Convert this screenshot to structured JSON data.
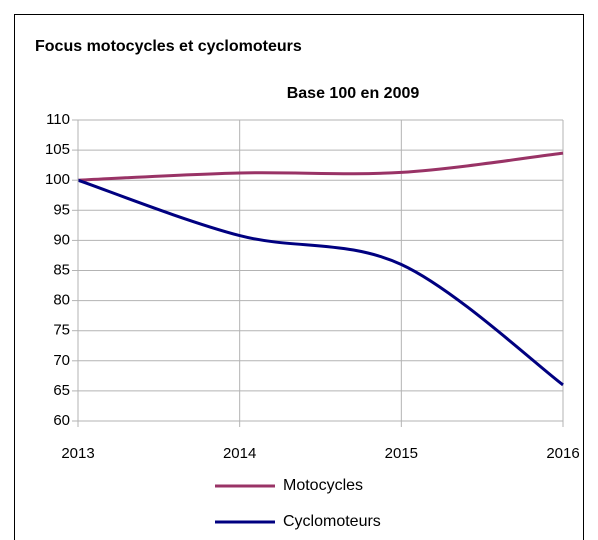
{
  "chart_data": {
    "type": "line",
    "title": "Focus motocycles et cyclomoteurs",
    "subtitle": "Base 100 en 2009",
    "x": [
      2013,
      2014,
      2015,
      2016
    ],
    "xlim": [
      2013,
      2016
    ],
    "xticks": [
      2013,
      2014,
      2015,
      2016
    ],
    "ylim": [
      60,
      110
    ],
    "yticks": [
      60,
      65,
      70,
      75,
      80,
      85,
      90,
      95,
      100,
      105,
      110
    ],
    "grid": true,
    "legend": "bottom",
    "series": [
      {
        "name": "Motocycles",
        "color": "#993366",
        "values": [
          100,
          101.2,
          101.3,
          104.5
        ]
      },
      {
        "name": "Cyclomoteurs",
        "color": "#000080",
        "values": [
          100,
          90.8,
          86,
          66
        ]
      }
    ]
  }
}
